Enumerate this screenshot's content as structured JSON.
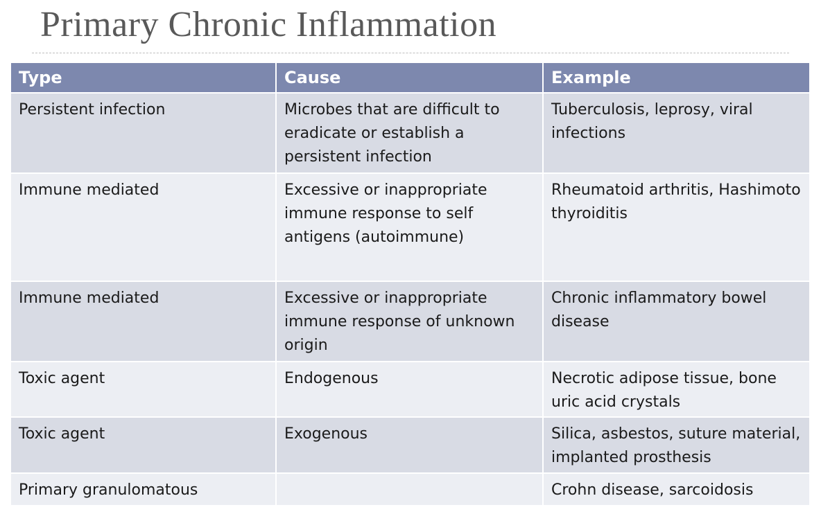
{
  "title": "Primary Chronic Inflammation",
  "table": {
    "header": [
      "Type",
      "Cause",
      "Example"
    ],
    "rows": [
      {
        "type": "Persistent infection",
        "cause": "Microbes that are difficult to eradicate or establish a persistent infection",
        "example": "Tuberculosis, leprosy, viral infections"
      },
      {
        "type": "Immune mediated",
        "cause": "Excessive or inappropriate immune response to self antigens (autoimmune)",
        "example": "Rheumatoid arthritis, Hashimoto thyroiditis"
      },
      {
        "type": "Immune mediated",
        "cause": "Excessive or inappropriate immune response of unknown origin",
        "example": "Chronic inflammatory bowel disease"
      },
      {
        "type": "Toxic agent",
        "cause": "Endogenous",
        "example": "Necrotic adipose tissue, bone uric acid crystals"
      },
      {
        "type": "Toxic agent",
        "cause": "Exogenous",
        "example": "Silica, asbestos, suture material, implanted prosthesis"
      },
      {
        "type": "Primary granulomatous",
        "example": "Crohn disease, sarcoidosis"
      }
    ]
  }
}
